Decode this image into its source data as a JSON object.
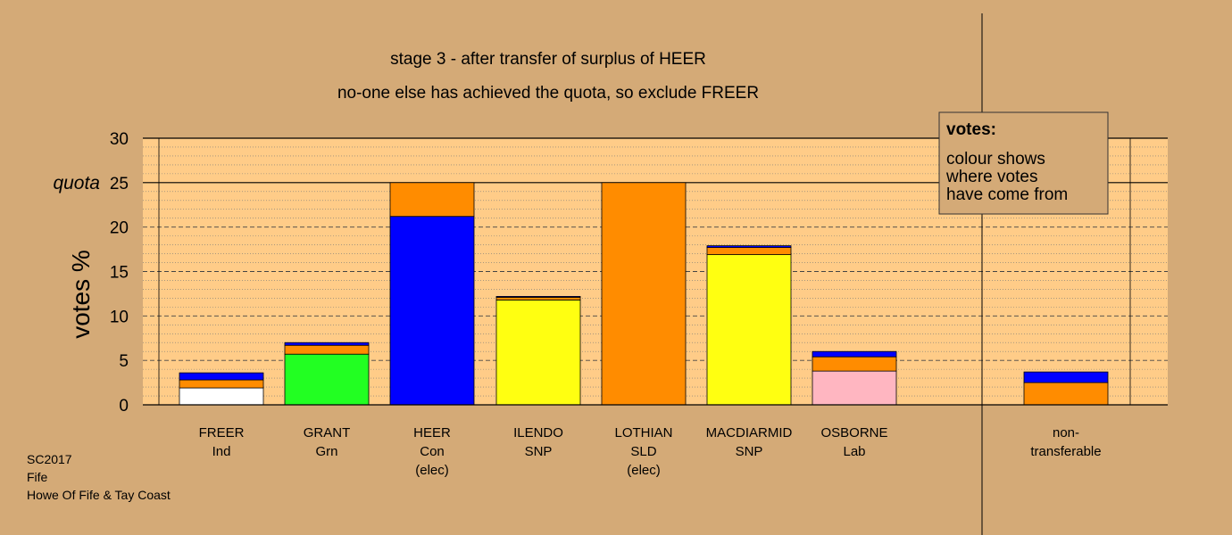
{
  "chart_data": {
    "type": "bar",
    "stacked": true,
    "title": "stage 3 - after transfer of surplus of HEER",
    "subtitle": "no-one else has achieved the quota, so exclude FREER",
    "ylabel": "votes %",
    "xlabel": "",
    "ylim": [
      0,
      30
    ],
    "yticks": [
      0,
      5,
      10,
      15,
      20,
      25,
      30
    ],
    "quota": 25,
    "quota_label": "quota",
    "grid": true,
    "categories": [
      {
        "name": "FREER",
        "lines": [
          "FREER",
          "Ind"
        ]
      },
      {
        "name": "GRANT",
        "lines": [
          "GRANT",
          "Grn"
        ]
      },
      {
        "name": "HEER",
        "lines": [
          "HEER",
          "Con",
          "(elec)"
        ]
      },
      {
        "name": "ILENDO",
        "lines": [
          "ILENDO",
          "SNP"
        ]
      },
      {
        "name": "LOTHIAN",
        "lines": [
          "LOTHIAN",
          "SLD",
          "(elec)"
        ]
      },
      {
        "name": "MACDIARMID",
        "lines": [
          "MACDIARMID",
          "SNP"
        ]
      },
      {
        "name": "OSBORNE",
        "lines": [
          "OSBORNE",
          "Lab"
        ]
      },
      {
        "name": "non-transferable",
        "lines": [
          "non-",
          "transferable"
        ]
      }
    ],
    "bars": [
      {
        "segments": [
          {
            "value": 1.9,
            "color": "#ffffff"
          },
          {
            "value": 0.9,
            "color": "#ff8c00"
          },
          {
            "value": 0.8,
            "color": "#0000ff"
          }
        ]
      },
      {
        "segments": [
          {
            "value": 5.7,
            "color": "#22ff22"
          },
          {
            "value": 1.0,
            "color": "#ff8c00"
          },
          {
            "value": 0.3,
            "color": "#0000ff"
          }
        ]
      },
      {
        "segments": [
          {
            "value": 21.2,
            "color": "#0000ff"
          },
          {
            "value": 3.8,
            "color": "#ff8c00"
          }
        ]
      },
      {
        "segments": [
          {
            "value": 11.8,
            "color": "#ffff11"
          },
          {
            "value": 0.3,
            "color": "#ff8c00"
          },
          {
            "value": 0.1,
            "color": "#0000ff"
          }
        ]
      },
      {
        "segments": [
          {
            "value": 25.0,
            "color": "#ff8c00"
          }
        ]
      },
      {
        "segments": [
          {
            "value": 16.9,
            "color": "#ffff11"
          },
          {
            "value": 0.8,
            "color": "#ff8c00"
          },
          {
            "value": 0.2,
            "color": "#0000ff"
          }
        ]
      },
      {
        "segments": [
          {
            "value": 3.8,
            "color": "#ffb6c1"
          },
          {
            "value": 1.6,
            "color": "#ff8c00"
          },
          {
            "value": 0.6,
            "color": "#0000ff"
          }
        ]
      },
      {
        "segments": [
          {
            "value": 2.5,
            "color": "#ff8c00"
          },
          {
            "value": 1.2,
            "color": "#0000ff"
          }
        ]
      }
    ],
    "legend": {
      "title": "votes:",
      "lines": [
        "colour shows",
        "where votes",
        "have come from"
      ],
      "placement": "top-right"
    }
  },
  "footer": {
    "lines": [
      "SC2017",
      "Fife",
      "Howe Of Fife & Tay Coast"
    ]
  },
  "colors": {
    "background": "#d4aa77",
    "plot_background": "#ffcc88"
  }
}
